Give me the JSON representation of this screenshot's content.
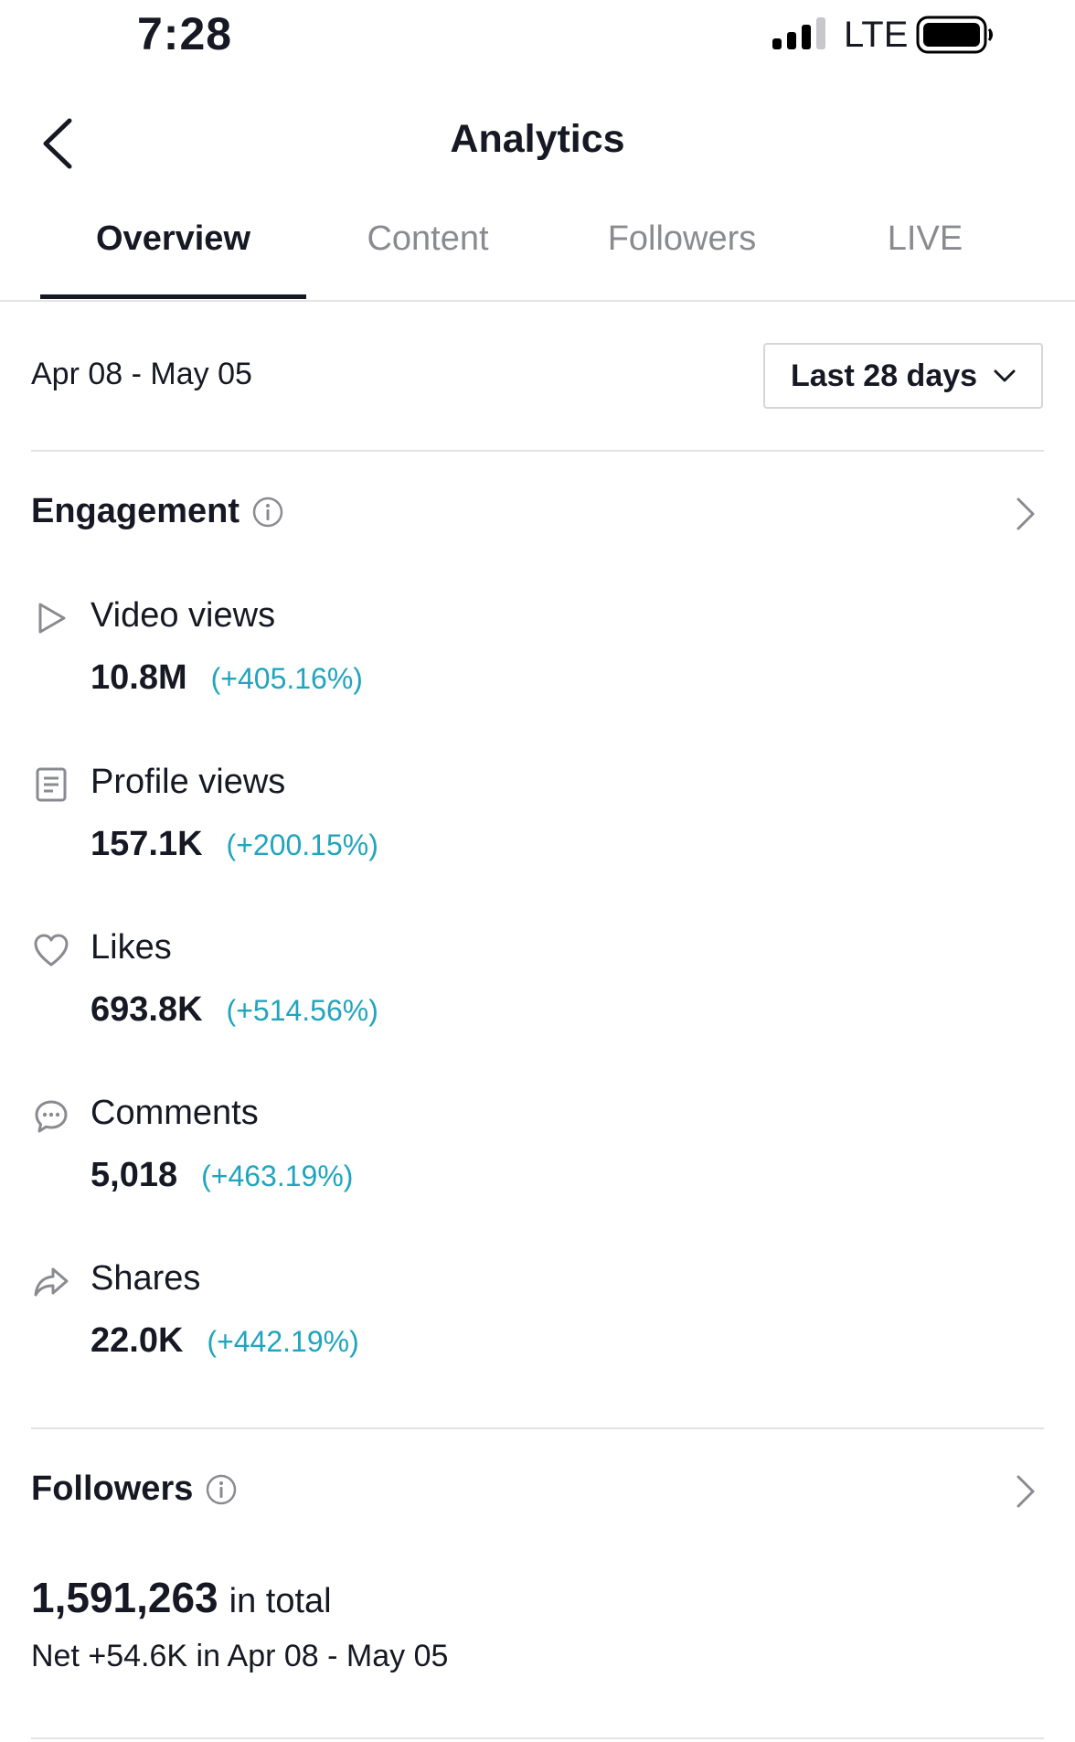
{
  "status_bar": {
    "time": "7:28",
    "network": "LTE"
  },
  "header": {
    "title": "Analytics"
  },
  "tabs": [
    {
      "label": "Overview",
      "active": true
    },
    {
      "label": "Content",
      "active": false
    },
    {
      "label": "Followers",
      "active": false
    },
    {
      "label": "LIVE",
      "active": false
    }
  ],
  "date_row": {
    "range": "Apr 08 - May 05",
    "period": "Last 28 days"
  },
  "engagement": {
    "title": "Engagement",
    "metrics": [
      {
        "icon": "play-icon",
        "label": "Video views",
        "value": "10.8M",
        "change": "(+405.16%)"
      },
      {
        "icon": "profile-doc-icon",
        "label": "Profile views",
        "value": "157.1K",
        "change": "(+200.15%)"
      },
      {
        "icon": "heart-icon",
        "label": "Likes",
        "value": "693.8K",
        "change": "(+514.56%)"
      },
      {
        "icon": "comment-icon",
        "label": "Comments",
        "value": "5,018",
        "change": "(+463.19%)"
      },
      {
        "icon": "share-icon",
        "label": "Shares",
        "value": "22.0K",
        "change": "(+442.19%)"
      }
    ]
  },
  "followers": {
    "title": "Followers",
    "total": "1,591,263",
    "total_suffix": "in total",
    "net": "Net +54.6K in Apr 08 - May 05"
  },
  "colors": {
    "accent_positive": "#20a5bd",
    "text": "#161823",
    "muted": "#8a8b91"
  }
}
